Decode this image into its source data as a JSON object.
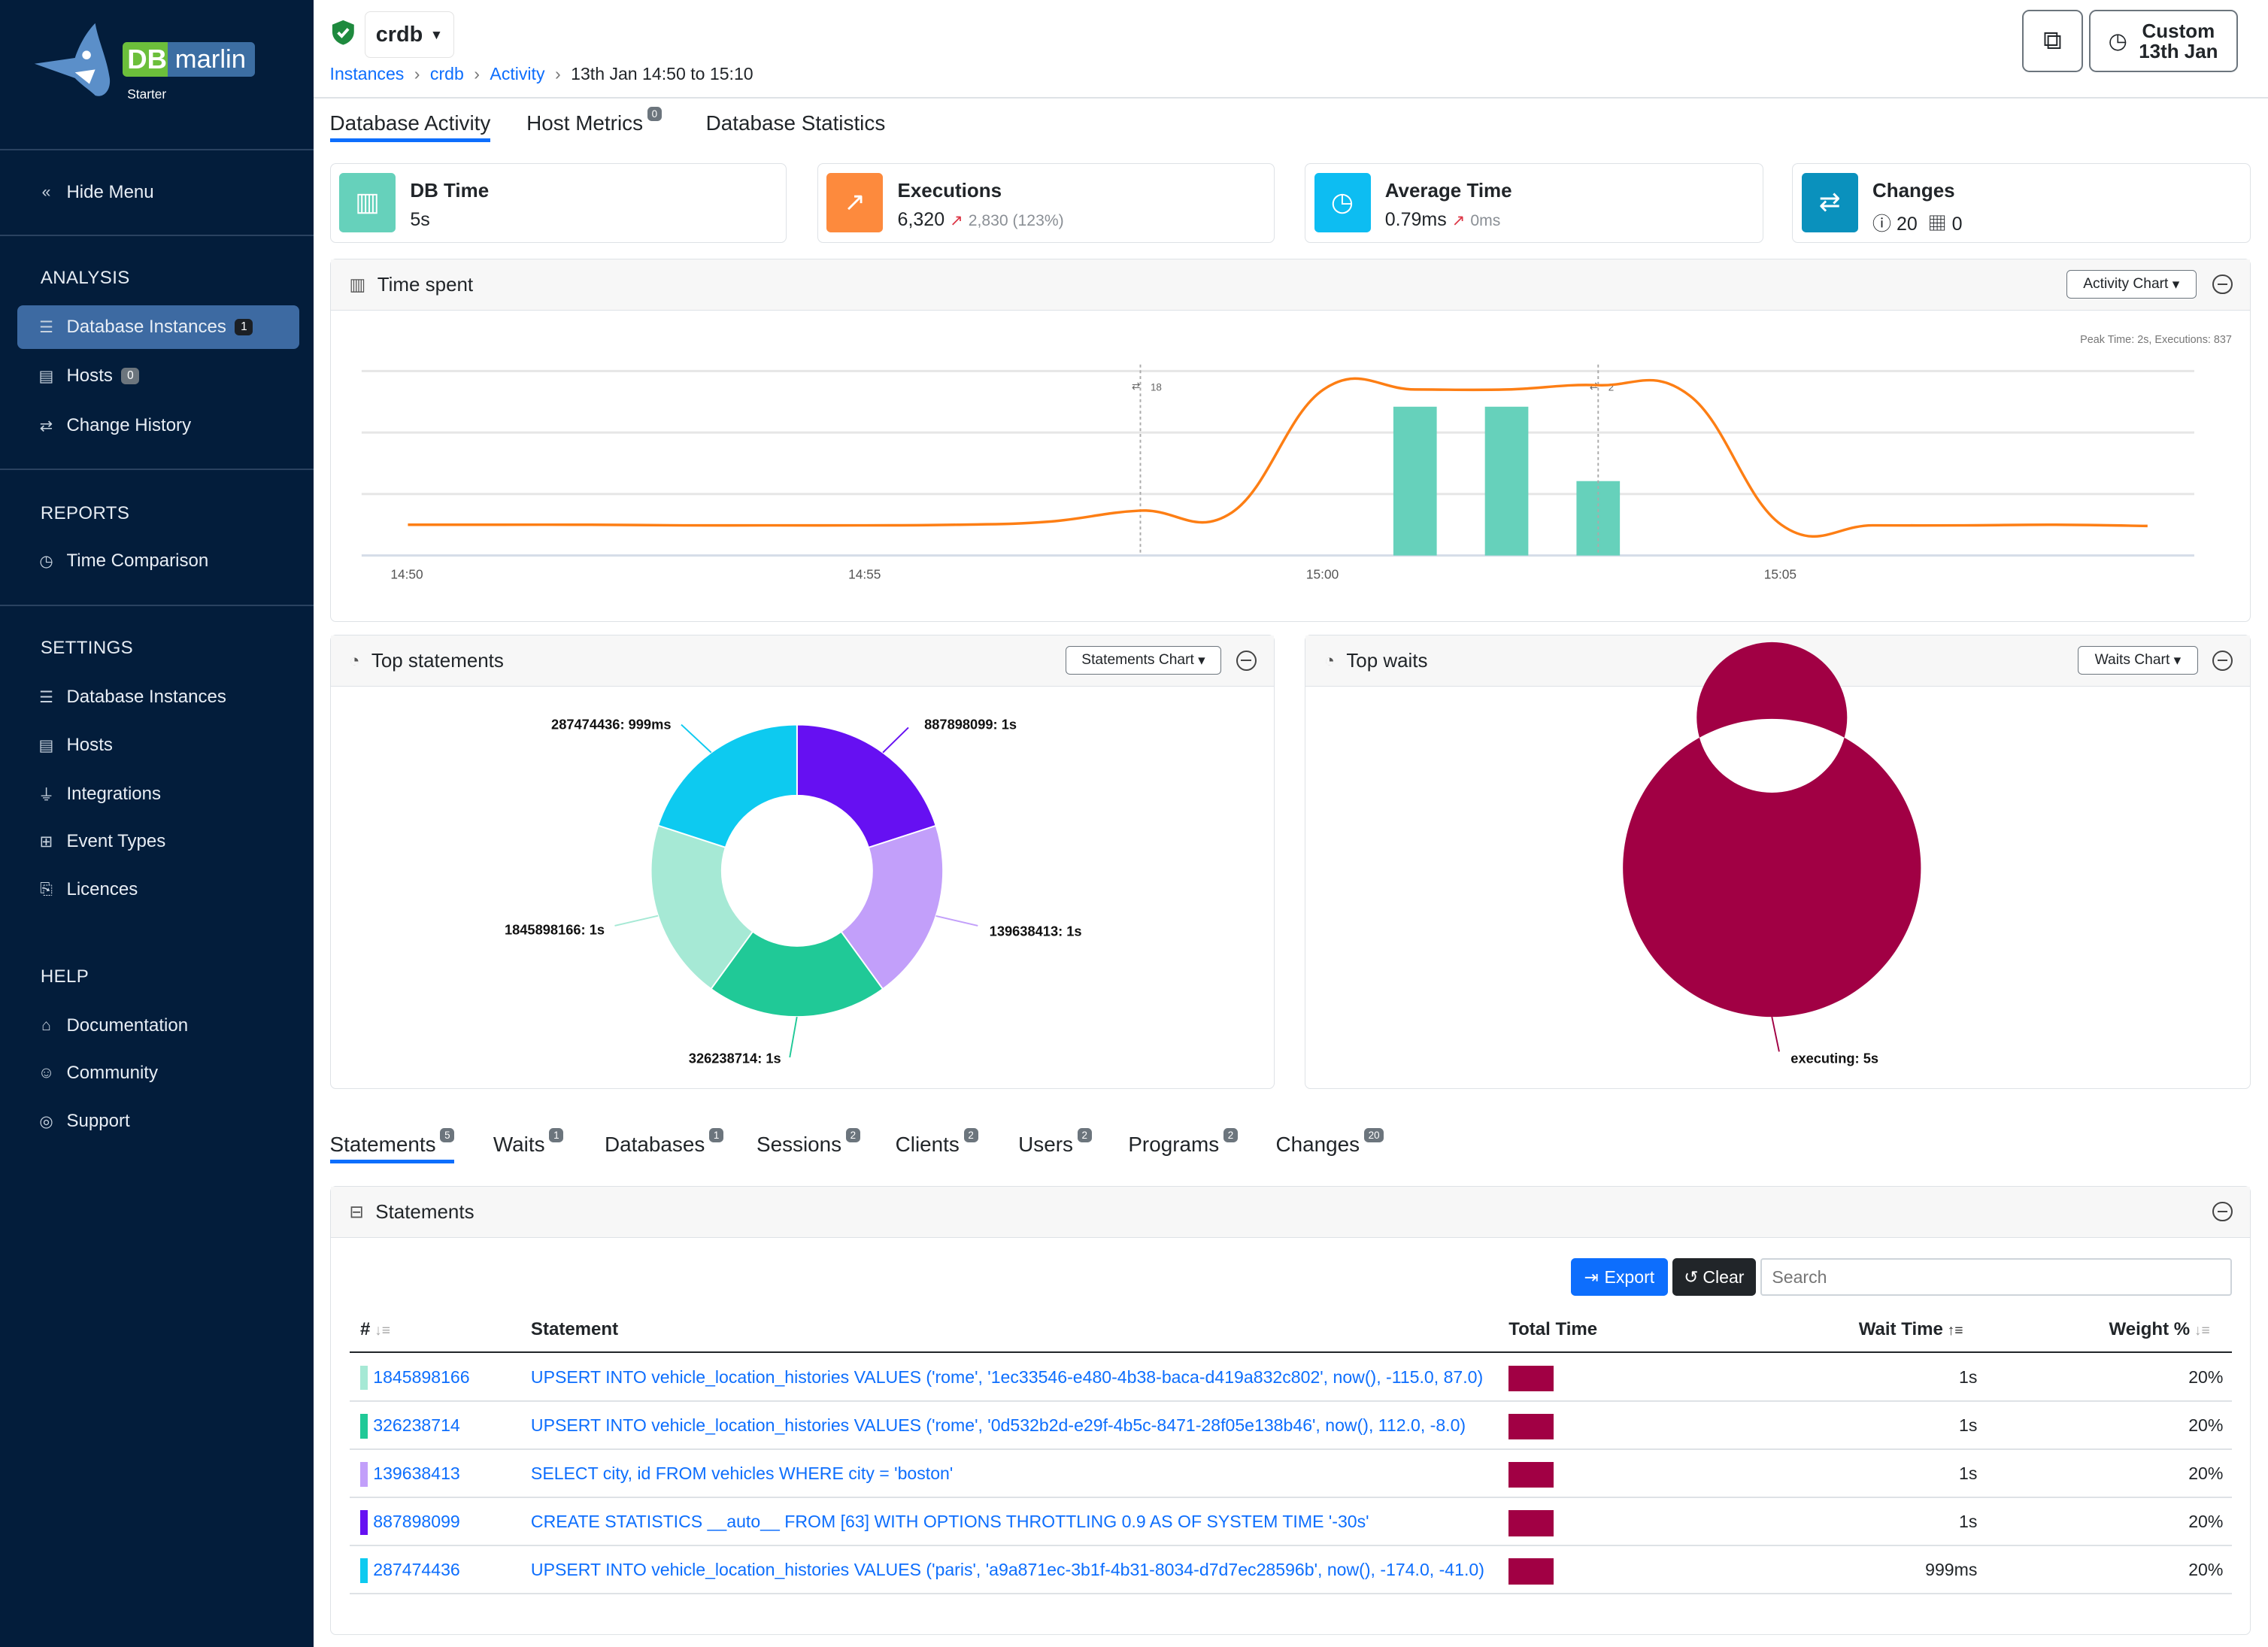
{
  "sidebar": {
    "logo": {
      "db": "DB",
      "marlin": "marlin",
      "edition": "Starter"
    },
    "hide_menu": "Hide Menu",
    "analysis": {
      "title": "ANALYSIS",
      "items": [
        {
          "label": "Database Instances",
          "badge": "1",
          "active": true
        },
        {
          "label": "Hosts",
          "badge": "0"
        },
        {
          "label": "Change History"
        }
      ]
    },
    "reports": {
      "title": "REPORTS",
      "items": [
        {
          "label": "Time Comparison"
        }
      ]
    },
    "settings": {
      "title": "SETTINGS",
      "items": [
        {
          "label": "Database Instances"
        },
        {
          "label": "Hosts"
        },
        {
          "label": "Integrations"
        },
        {
          "label": "Event Types"
        },
        {
          "label": "Licences"
        }
      ]
    },
    "help": {
      "title": "HELP",
      "items": [
        {
          "label": "Documentation"
        },
        {
          "label": "Community"
        },
        {
          "label": "Support"
        }
      ]
    }
  },
  "header": {
    "instance": "crdb",
    "breadcrumb": [
      "Instances",
      "crdb",
      "Activity"
    ],
    "range": "13th Jan 14:50 to 15:10",
    "time_button": {
      "line1": "Custom",
      "line2": "13th Jan"
    }
  },
  "tabs": [
    {
      "label": "Database Activity",
      "active": true
    },
    {
      "label": "Host Metrics",
      "badge": "0"
    },
    {
      "label": "Database Statistics"
    }
  ],
  "kpis": [
    {
      "title": "DB Time",
      "value": "5s",
      "color": "#66d1bb"
    },
    {
      "title": "Executions",
      "value": "6,320",
      "delta": "2,830 (123%)",
      "color": "#fd8a3d"
    },
    {
      "title": "Average Time",
      "value": "0.79ms",
      "delta": "0ms",
      "color": "#0dbdf2"
    },
    {
      "title": "Changes",
      "info_count": "20",
      "calendar_count": "0",
      "color": "#0a91bd"
    }
  ],
  "time_spent": {
    "title": "Time spent",
    "dropdown": "Activity Chart",
    "peak": "Peak Time: 2s, Executions: 837"
  },
  "top_statements": {
    "title": "Top statements",
    "dropdown": "Statements Chart"
  },
  "top_waits": {
    "title": "Top waits",
    "dropdown": "Waits Chart"
  },
  "chart_data": [
    {
      "type": "line+bar",
      "title": "Time spent",
      "x_ticks": [
        "14:50",
        "14:55",
        "15:00",
        "15:05"
      ],
      "grid": true,
      "line": {
        "color": "#fd7e14",
        "x": [
          "14:50",
          "14:51",
          "14:52",
          "14:53",
          "14:54",
          "14:55",
          "14:56",
          "14:57",
          "14:58",
          "14:59",
          "15:00",
          "15:01",
          "15:02",
          "15:03",
          "15:04",
          "15:05",
          "15:06",
          "15:07",
          "15:08",
          "15:09"
        ],
        "y": [
          0.5,
          0.5,
          0.5,
          0.49,
          0.49,
          0.49,
          0.5,
          0.55,
          0.73,
          0.7,
          2.7,
          2.7,
          2.7,
          2.77,
          2.6,
          0.5,
          0.49,
          0.49,
          0.5,
          0.48
        ]
      },
      "bars": {
        "color": "#66d1bb",
        "x": [
          "15:01",
          "15:02",
          "15:03"
        ],
        "y": [
          2.42,
          2.42,
          1.21
        ]
      },
      "ylim": [
        0,
        3
      ],
      "change_markers": [
        {
          "x": "14:58",
          "label": "18"
        },
        {
          "x": "15:03",
          "label": "2"
        }
      ]
    },
    {
      "type": "pie",
      "title": "Top statements",
      "donut": true,
      "slices": [
        {
          "label": "887898099: 1s",
          "value": 1,
          "color": "#6610f2"
        },
        {
          "label": "139638413: 1s",
          "value": 1,
          "color": "#c29ffa"
        },
        {
          "label": "326238714: 1s",
          "value": 1,
          "color": "#20c997"
        },
        {
          "label": "1845898166: 1s",
          "value": 1,
          "color": "#a6e9d5"
        },
        {
          "label": "287474436: 999ms",
          "value": 0.999,
          "color": "#0dcaf0"
        }
      ]
    },
    {
      "type": "pie",
      "title": "Top waits",
      "donut": true,
      "slices": [
        {
          "label": "executing: 5s",
          "value": 5,
          "color": "#a10044"
        }
      ]
    }
  ],
  "bottom_tabs": [
    {
      "label": "Statements",
      "badge": "5",
      "active": true
    },
    {
      "label": "Waits",
      "badge": "1"
    },
    {
      "label": "Databases",
      "badge": "1"
    },
    {
      "label": "Sessions",
      "badge": "2"
    },
    {
      "label": "Clients",
      "badge": "2"
    },
    {
      "label": "Users",
      "badge": "2"
    },
    {
      "label": "Programs",
      "badge": "2"
    },
    {
      "label": "Changes",
      "badge": "20"
    }
  ],
  "statements": {
    "title": "Statements",
    "export": "Export",
    "clear": "Clear",
    "search_placeholder": "Search",
    "columns": [
      "#",
      "Statement",
      "Total Time",
      "Wait Time",
      "Weight %"
    ],
    "rows": [
      {
        "id": "1845898166",
        "color": "#a6e9d5",
        "statement": "UPSERT INTO vehicle_location_histories VALUES ('rome', '1ec33546-e480-4b38-baca-d419a832c802', now(), -115.0, 87.0)",
        "total": 1,
        "wait": "1s",
        "weight": "20%"
      },
      {
        "id": "326238714",
        "color": "#20c997",
        "statement": "UPSERT INTO vehicle_location_histories VALUES ('rome', '0d532b2d-e29f-4b5c-8471-28f05e138b46', now(), 112.0, -8.0)",
        "total": 1,
        "wait": "1s",
        "weight": "20%"
      },
      {
        "id": "139638413",
        "color": "#c29ffa",
        "statement": "SELECT city, id FROM vehicles WHERE city = 'boston'",
        "total": 1,
        "wait": "1s",
        "weight": "20%"
      },
      {
        "id": "887898099",
        "color": "#6610f2",
        "statement": "CREATE STATISTICS __auto__ FROM [63] WITH OPTIONS THROTTLING 0.9 AS OF SYSTEM TIME '-30s'",
        "total": 1,
        "wait": "1s",
        "weight": "20%"
      },
      {
        "id": "287474436",
        "color": "#0dcaf0",
        "statement": "UPSERT INTO vehicle_location_histories VALUES ('paris', 'a9a871ec-3b1f-4b31-8034-d7d7ec28596b', now(), -174.0, -41.0)",
        "total": 0.999,
        "wait": "999ms",
        "weight": "20%"
      }
    ]
  }
}
